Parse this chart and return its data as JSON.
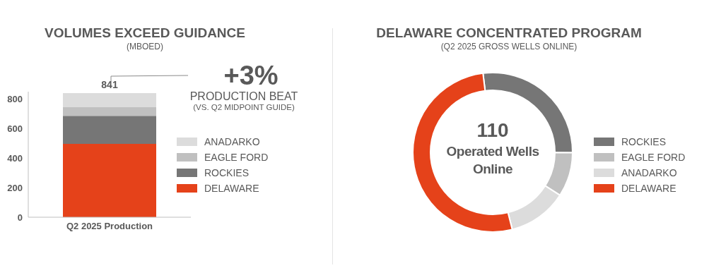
{
  "chart_data": [
    {
      "type": "bar",
      "title": "VOLUMES EXCEED GUIDANCE",
      "subtitle": "(MBOED)",
      "categories": [
        "Q2 2025 Production"
      ],
      "stacked": true,
      "series": [
        {
          "name": "DELAWARE",
          "color": "#e5421a",
          "values": [
            497
          ]
        },
        {
          "name": "ROCKIES",
          "color": "#767676",
          "values": [
            190
          ]
        },
        {
          "name": "EAGLE FORD",
          "color": "#c0c0c0",
          "values": [
            60
          ]
        },
        {
          "name": "ANADARKO",
          "color": "#dcdcdc",
          "values": [
            94
          ]
        }
      ],
      "totals": [
        "841"
      ],
      "ylim": [
        0,
        850
      ],
      "yticks": [
        0,
        200,
        400,
        600,
        800
      ],
      "grid": false,
      "legend": "right",
      "annotations": [
        "+3%",
        "PRODUCTION BEAT",
        "(VS. Q2 MIDPOINT GUIDE)"
      ]
    },
    {
      "type": "donut",
      "title": "DELAWARE CONCENTRATED PROGRAM",
      "subtitle": "(Q2 2025 GROSS WELLS ONLINE)",
      "categories": [
        "ROCKIES",
        "EAGLE FORD",
        "ANADARKO",
        "DELAWARE"
      ],
      "values": [
        27,
        9,
        12,
        52
      ],
      "colors": [
        "#767676",
        "#c0c0c0",
        "#dcdcdc",
        "#e5421a"
      ],
      "legend": "right",
      "annotations": [
        "110",
        "Operated Wells Online"
      ]
    }
  ]
}
